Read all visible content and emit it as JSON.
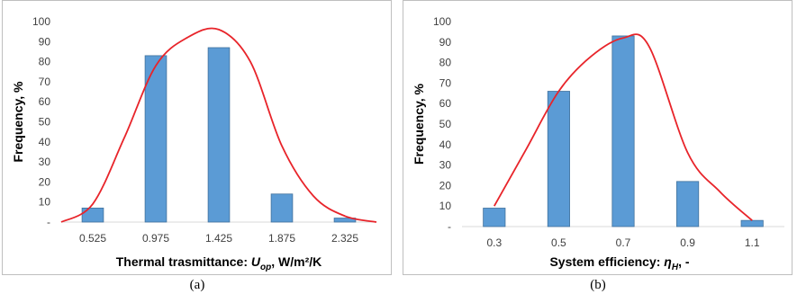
{
  "chart_data": [
    {
      "type": "bar",
      "panel": "(a)",
      "categories": [
        "0.525",
        "0.975",
        "1.425",
        "1.875",
        "2.325"
      ],
      "values": [
        7,
        83,
        87,
        14,
        2
      ],
      "ylabel": "Frequency, %",
      "xlabel": "Thermal trasmittance: ",
      "xlabel_symbol": "U",
      "xlabel_sub": "op",
      "xlabel_unit": ", W/m²/K",
      "ylim": [
        0,
        100
      ],
      "yticks": [
        "-",
        "10",
        "20",
        "30",
        "40",
        "50",
        "60",
        "70",
        "80",
        "90",
        "100"
      ],
      "fit_curve": [
        [
          -0.5,
          0
        ],
        [
          0,
          9
        ],
        [
          0.5,
          42
        ],
        [
          1,
          78
        ],
        [
          1.5,
          92
        ],
        [
          2,
          96
        ],
        [
          2.5,
          80
        ],
        [
          3,
          38
        ],
        [
          3.5,
          13
        ],
        [
          4,
          3
        ],
        [
          4.5,
          0
        ]
      ],
      "bar_color": "#5b9bd5",
      "curve_color": "#e8242a",
      "grid": false
    },
    {
      "type": "bar",
      "panel": "(b)",
      "categories": [
        "0.3",
        "0.5",
        "0.7",
        "0.9",
        "1.1"
      ],
      "values": [
        9,
        66,
        93,
        22,
        3
      ],
      "ylabel": "Frequency, %",
      "xlabel": "System efficiency: ",
      "xlabel_symbol": "η",
      "xlabel_sub": "H",
      "xlabel_unit": ", -",
      "ylim": [
        0,
        100
      ],
      "yticks": [
        "-",
        "10",
        "20",
        "30",
        "40",
        "50",
        "60",
        "70",
        "80",
        "90",
        "100"
      ],
      "fit_curve": [
        [
          0,
          10
        ],
        [
          0.5,
          38
        ],
        [
          1,
          66
        ],
        [
          1.5,
          83
        ],
        [
          2,
          92
        ],
        [
          2.4,
          88
        ],
        [
          3,
          36
        ],
        [
          3.5,
          17
        ],
        [
          4,
          3
        ]
      ],
      "bar_color": "#5b9bd5",
      "curve_color": "#e8242a",
      "grid": false
    }
  ],
  "captions": {
    "a": "(a)",
    "b": "(b)"
  }
}
